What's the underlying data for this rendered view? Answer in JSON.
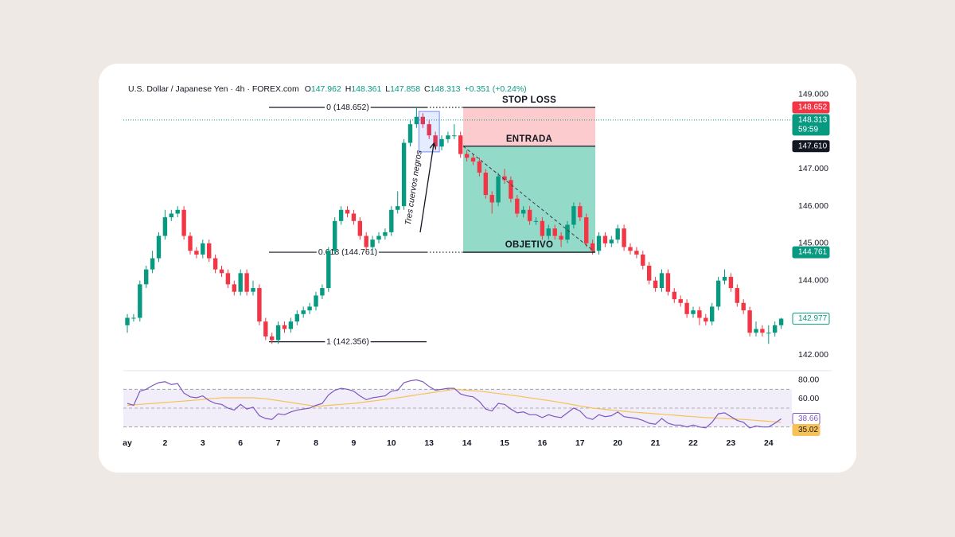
{
  "chart_data": {
    "type": "candlestick",
    "header": {
      "symbol": "U.S. Dollar / Japanese Yen · 4h · FOREX.com",
      "items": [
        {
          "key": "O",
          "value": "147.962"
        },
        {
          "key": "H",
          "value": "148.361"
        },
        {
          "key": "L",
          "value": "147.858"
        },
        {
          "key": "C",
          "value": "148.313"
        }
      ],
      "change": "+0.351 (+0.24%)"
    },
    "categories": [
      "ay",
      null,
      null,
      null,
      null,
      null,
      "2",
      null,
      null,
      null,
      null,
      null,
      "3",
      null,
      null,
      null,
      null,
      null,
      "6",
      null,
      null,
      null,
      null,
      null,
      "7",
      null,
      null,
      null,
      null,
      null,
      "8",
      null,
      null,
      null,
      null,
      null,
      "9",
      null,
      null,
      null,
      null,
      null,
      "10",
      null,
      null,
      null,
      null,
      null,
      "13",
      null,
      null,
      null,
      null,
      null,
      "14",
      null,
      null,
      null,
      null,
      null,
      "15",
      null,
      null,
      null,
      null,
      null,
      "16",
      null,
      null,
      null,
      null,
      null,
      "17",
      null,
      null,
      null,
      null,
      null,
      "20",
      null,
      null,
      null,
      null,
      null,
      "21",
      null,
      null,
      null,
      null,
      null,
      "22",
      null,
      null,
      null,
      null,
      null,
      "23",
      null,
      null,
      null,
      null,
      null,
      "24",
      null,
      null
    ],
    "candles": [
      [
        142.8,
        143.1,
        142.6,
        143.0
      ],
      [
        143.0,
        143.1,
        142.9,
        143.0
      ],
      [
        143.0,
        144.0,
        142.9,
        143.9
      ],
      [
        143.9,
        144.4,
        143.8,
        144.3
      ],
      [
        144.3,
        144.8,
        144.2,
        144.6
      ],
      [
        144.6,
        145.3,
        144.5,
        145.2
      ],
      [
        145.2,
        145.9,
        145.1,
        145.7
      ],
      [
        145.7,
        145.9,
        145.6,
        145.8
      ],
      [
        145.8,
        146.0,
        145.7,
        145.9
      ],
      [
        145.9,
        146.0,
        145.1,
        145.2
      ],
      [
        145.2,
        145.3,
        144.7,
        144.8
      ],
      [
        144.8,
        144.9,
        144.6,
        144.7
      ],
      [
        144.7,
        145.1,
        144.6,
        145.0
      ],
      [
        145.0,
        145.1,
        144.5,
        144.6
      ],
      [
        144.6,
        144.7,
        144.2,
        144.3
      ],
      [
        144.3,
        144.4,
        144.1,
        144.2
      ],
      [
        144.2,
        144.3,
        143.8,
        143.9
      ],
      [
        143.9,
        144.0,
        143.6,
        143.7
      ],
      [
        143.7,
        144.3,
        143.6,
        144.2
      ],
      [
        144.2,
        144.3,
        143.6,
        143.7
      ],
      [
        143.7,
        144.0,
        143.6,
        143.8
      ],
      [
        143.8,
        143.9,
        142.8,
        142.9
      ],
      [
        142.9,
        143.0,
        142.4,
        142.5
      ],
      [
        142.5,
        142.6,
        142.3,
        142.4
      ],
      [
        142.4,
        142.9,
        142.3,
        142.8
      ],
      [
        142.8,
        142.9,
        142.6,
        142.7
      ],
      [
        142.7,
        143.0,
        142.6,
        142.9
      ],
      [
        142.9,
        143.2,
        142.8,
        143.1
      ],
      [
        143.1,
        143.3,
        143.0,
        143.2
      ],
      [
        143.2,
        143.4,
        143.1,
        143.3
      ],
      [
        143.3,
        143.7,
        143.2,
        143.6
      ],
      [
        143.6,
        143.9,
        143.5,
        143.8
      ],
      [
        143.8,
        144.9,
        143.7,
        144.8
      ],
      [
        144.8,
        145.7,
        144.7,
        145.6
      ],
      [
        145.6,
        146.0,
        145.5,
        145.9
      ],
      [
        145.9,
        146.0,
        145.7,
        145.8
      ],
      [
        145.8,
        145.9,
        145.5,
        145.6
      ],
      [
        145.6,
        145.7,
        145.1,
        145.2
      ],
      [
        145.2,
        145.3,
        144.8,
        144.9
      ],
      [
        144.9,
        145.2,
        144.8,
        145.1
      ],
      [
        145.1,
        145.3,
        145.0,
        145.2
      ],
      [
        145.2,
        145.4,
        145.1,
        145.3
      ],
      [
        145.3,
        146.0,
        145.2,
        145.9
      ],
      [
        145.9,
        146.4,
        145.8,
        146.0
      ],
      [
        146.0,
        147.8,
        145.9,
        147.7
      ],
      [
        147.7,
        148.3,
        147.6,
        148.2
      ],
      [
        148.2,
        148.652,
        148.1,
        148.4
      ],
      [
        148.4,
        148.5,
        148.1,
        148.2
      ],
      [
        148.2,
        148.3,
        147.8,
        147.9
      ],
      [
        147.9,
        148.0,
        147.5,
        147.6
      ],
      [
        147.6,
        147.9,
        147.5,
        147.8
      ],
      [
        147.8,
        148.0,
        147.7,
        147.9
      ],
      [
        147.9,
        148.2,
        147.8,
        147.9
      ],
      [
        147.9,
        148.0,
        147.3,
        147.4
      ],
      [
        147.4,
        147.5,
        147.2,
        147.3
      ],
      [
        147.3,
        147.4,
        147.1,
        147.2
      ],
      [
        147.2,
        147.3,
        146.8,
        146.9
      ],
      [
        146.9,
        147.0,
        146.2,
        146.3
      ],
      [
        146.3,
        146.4,
        145.8,
        146.1
      ],
      [
        146.1,
        146.9,
        146.0,
        146.8
      ],
      [
        146.8,
        147.0,
        146.6,
        146.7
      ],
      [
        146.7,
        146.8,
        146.1,
        146.2
      ],
      [
        146.2,
        146.3,
        145.7,
        145.8
      ],
      [
        145.8,
        146.0,
        145.7,
        145.9
      ],
      [
        145.9,
        146.0,
        145.5,
        145.6
      ],
      [
        145.6,
        145.7,
        145.5,
        145.6
      ],
      [
        145.6,
        145.7,
        145.1,
        145.2
      ],
      [
        145.2,
        145.5,
        145.1,
        145.4
      ],
      [
        145.4,
        145.5,
        145.1,
        145.2
      ],
      [
        145.2,
        145.3,
        144.9,
        145.1
      ],
      [
        145.1,
        145.6,
        145.0,
        145.5
      ],
      [
        145.5,
        146.1,
        145.4,
        146.0
      ],
      [
        146.0,
        146.1,
        145.6,
        145.7
      ],
      [
        145.7,
        145.8,
        144.9,
        145.0
      ],
      [
        145.0,
        145.1,
        144.7,
        144.8
      ],
      [
        144.8,
        145.3,
        144.7,
        145.2
      ],
      [
        145.2,
        145.3,
        144.9,
        145.0
      ],
      [
        145.0,
        145.2,
        144.9,
        145.1
      ],
      [
        145.1,
        145.5,
        145.0,
        145.4
      ],
      [
        145.4,
        145.5,
        144.8,
        144.9
      ],
      [
        144.9,
        145.0,
        144.7,
        144.8
      ],
      [
        144.8,
        144.9,
        144.6,
        144.7
      ],
      [
        144.7,
        144.8,
        144.3,
        144.4
      ],
      [
        144.4,
        144.5,
        143.9,
        144.0
      ],
      [
        144.0,
        144.1,
        143.7,
        143.8
      ],
      [
        143.8,
        144.3,
        143.7,
        144.2
      ],
      [
        144.2,
        144.3,
        143.6,
        143.7
      ],
      [
        143.7,
        143.8,
        143.4,
        143.5
      ],
      [
        143.5,
        143.6,
        143.3,
        143.4
      ],
      [
        143.4,
        143.5,
        143.0,
        143.1
      ],
      [
        143.1,
        143.3,
        143.0,
        143.2
      ],
      [
        143.2,
        143.3,
        142.8,
        143.0
      ],
      [
        143.0,
        143.1,
        142.8,
        142.9
      ],
      [
        142.9,
        143.4,
        142.8,
        143.3
      ],
      [
        143.3,
        144.1,
        143.2,
        144.0
      ],
      [
        144.0,
        144.3,
        143.9,
        144.1
      ],
      [
        144.1,
        144.2,
        143.7,
        143.8
      ],
      [
        143.8,
        143.9,
        143.3,
        143.4
      ],
      [
        143.4,
        143.5,
        143.1,
        143.2
      ],
      [
        143.2,
        143.3,
        142.5,
        142.6
      ],
      [
        142.6,
        142.9,
        142.5,
        142.7
      ],
      [
        142.7,
        142.8,
        142.5,
        142.6
      ],
      [
        142.6,
        142.8,
        142.3,
        142.6
      ],
      [
        142.6,
        142.9,
        142.5,
        142.8
      ],
      [
        142.8,
        143.0,
        142.7,
        142.977
      ]
    ],
    "up_color": "#089981",
    "down_color": "#f23645",
    "ylim": [
      141.6,
      149.4
    ],
    "yticks": [
      {
        "value": 142,
        "label": "142.000"
      },
      {
        "value": 144,
        "label": "144.000"
      },
      {
        "value": 145,
        "label": "145.000"
      },
      {
        "value": 146,
        "label": "146.000"
      },
      {
        "value": 147,
        "label": "147.000"
      },
      {
        "value": 149,
        "label": "149.000"
      }
    ],
    "price_labels": [
      {
        "value": 148.652,
        "label": "148.652",
        "color": "#f23645"
      },
      {
        "value": 148.313,
        "label": "148.313",
        "countdown": "59:59",
        "color": "#089981"
      },
      {
        "value": 147.61,
        "label": "147.610",
        "color": "#131722"
      },
      {
        "value": 144.761,
        "label": "144.761",
        "color": "#089981"
      },
      {
        "value": 142.977,
        "label": "142.977",
        "color": "#089981",
        "outline": true
      }
    ],
    "fibonacci": [
      {
        "value": 148.652,
        "label": "0 (148.652)"
      },
      {
        "value": 144.761,
        "label": "0.618 (144.761)"
      },
      {
        "value": 142.356,
        "label": "1 (142.356)"
      }
    ],
    "position": {
      "stop": 148.652,
      "entry": 147.61,
      "target": 144.761,
      "stop_label": "STOP LOSS",
      "entry_label": "ENTRADA",
      "target_label": "OBJETIVO",
      "stop_color": "#fbcbce",
      "target_color": "#94dac9"
    },
    "annotation": "Tres cuervos negros",
    "rsi": {
      "color": "#7e57c2",
      "ma_color": "#f6c257",
      "ylim": [
        23,
        88
      ],
      "yticks": [
        {
          "value": 80,
          "label": "80.00"
        },
        {
          "value": 60,
          "label": "60.00"
        }
      ],
      "bands": [
        30,
        50,
        70
      ],
      "values": [
        55,
        53,
        68,
        70,
        74,
        77,
        78,
        75,
        76,
        66,
        62,
        61,
        63,
        58,
        55,
        54,
        50,
        48,
        54,
        49,
        51,
        42,
        39,
        38,
        44,
        43,
        46,
        48,
        49,
        50,
        53,
        55,
        64,
        69,
        71,
        70,
        68,
        63,
        59,
        61,
        62,
        63,
        68,
        69,
        77,
        79,
        80,
        78,
        73,
        69,
        70,
        71,
        71,
        65,
        63,
        62,
        57,
        49,
        47,
        55,
        54,
        49,
        45,
        46,
        43,
        43,
        40,
        43,
        41,
        40,
        45,
        50,
        47,
        40,
        38,
        43,
        41,
        42,
        46,
        41,
        40,
        39,
        37,
        34,
        33,
        39,
        34,
        32,
        32,
        30,
        32,
        30,
        29,
        35,
        44,
        45,
        41,
        37,
        35,
        29,
        31,
        30,
        30,
        34,
        38.66
      ],
      "ma": [
        53,
        53.5,
        54,
        54.5,
        55,
        55.5,
        56,
        56.5,
        57,
        57.5,
        58,
        58.6,
        59.2,
        59.8,
        60.4,
        61,
        61,
        61,
        61,
        61,
        61,
        60.5,
        60,
        59,
        58,
        57,
        56,
        55,
        54,
        53,
        52,
        52.5,
        53,
        53.5,
        54,
        54.5,
        55,
        55.8,
        56.7,
        57.5,
        58.3,
        59.2,
        60,
        61,
        62,
        63,
        64,
        65,
        66,
        67,
        68,
        69,
        70,
        69.5,
        69,
        68.5,
        68,
        67.2,
        66.3,
        65.5,
        64.7,
        63.8,
        63,
        62,
        61,
        60,
        59,
        58,
        57,
        55.8,
        54.7,
        53.5,
        52.3,
        51.2,
        50,
        49.3,
        48.7,
        48,
        47.3,
        46.7,
        46,
        45.5,
        45,
        44.5,
        44,
        43.5,
        43,
        42.5,
        42,
        41.5,
        41,
        40.5,
        40,
        39.7,
        39.3,
        39,
        38.7,
        38.3,
        38,
        37.5,
        37,
        36.5,
        36,
        35.5,
        35.02
      ],
      "labels": [
        {
          "value": 38.66,
          "label": "38.66",
          "color": "#7e57c2",
          "outline": true
        },
        {
          "value": 35.02,
          "label": "35.02",
          "color": "#f6c257"
        }
      ]
    }
  }
}
